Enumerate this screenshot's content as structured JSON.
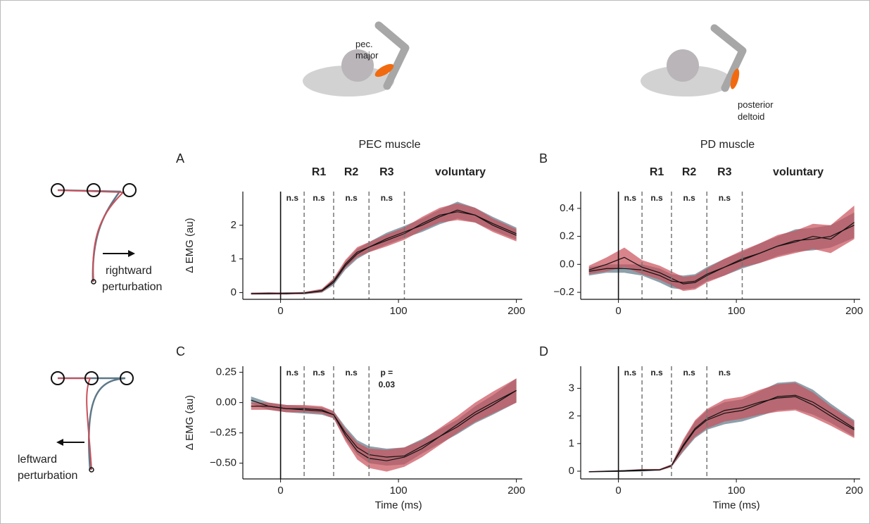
{
  "illustrations": {
    "pec_label": [
      "pec.",
      "major"
    ],
    "pd_label": [
      "posterior",
      "deltoid"
    ],
    "rightward": [
      "rightward",
      "perturbation"
    ],
    "leftward": [
      "leftward",
      "perturbation"
    ]
  },
  "chart_data": [
    {
      "type": "line",
      "panel": "A",
      "title": "PEC muscle",
      "ylabel": "Δ EMG (au)",
      "x": [
        -25,
        -10,
        5,
        20,
        35,
        45,
        55,
        65,
        75,
        90,
        105,
        120,
        135,
        150,
        165,
        180,
        200
      ],
      "xlim": [
        -32,
        205
      ],
      "xticks": [
        0,
        100,
        200
      ],
      "ylim": [
        -0.2,
        3.0
      ],
      "yticks": [
        0,
        1,
        2
      ],
      "onset": 0,
      "windows": [
        {
          "start": 0,
          "end": 20,
          "stat": [
            "n.s"
          ]
        },
        {
          "label": "R1",
          "start": 20,
          "end": 45,
          "stat": [
            "n.s"
          ]
        },
        {
          "label": "R2",
          "start": 45,
          "end": 75,
          "stat": [
            "n.s"
          ]
        },
        {
          "label": "R3",
          "start": 75,
          "end": 105,
          "stat": [
            "n.s"
          ]
        },
        {
          "label": "voluntary",
          "start": 105,
          "end": 200
        }
      ],
      "series": [
        {
          "color": "#5d7888",
          "values": [
            -0.03,
            -0.03,
            -0.02,
            -0.02,
            0.05,
            0.3,
            0.8,
            1.15,
            1.35,
            1.6,
            1.8,
            2.0,
            2.25,
            2.45,
            2.3,
            2.05,
            1.75
          ],
          "error": [
            0.03,
            0.03,
            0.03,
            0.03,
            0.05,
            0.08,
            0.12,
            0.15,
            0.15,
            0.18,
            0.18,
            0.2,
            0.22,
            0.25,
            0.22,
            0.2,
            0.18
          ]
        },
        {
          "color": "#c9505a",
          "values": [
            -0.03,
            -0.02,
            -0.03,
            -0.01,
            0.06,
            0.35,
            0.85,
            1.2,
            1.35,
            1.55,
            1.75,
            2.05,
            2.3,
            2.4,
            2.3,
            2.0,
            1.7
          ],
          "error": [
            0.03,
            0.03,
            0.03,
            0.03,
            0.05,
            0.08,
            0.12,
            0.15,
            0.15,
            0.18,
            0.18,
            0.2,
            0.22,
            0.25,
            0.22,
            0.2,
            0.18
          ]
        }
      ]
    },
    {
      "type": "line",
      "panel": "B",
      "title": "PD muscle",
      "x": [
        -25,
        -10,
        5,
        20,
        35,
        45,
        55,
        65,
        75,
        90,
        105,
        120,
        135,
        150,
        165,
        180,
        200
      ],
      "xlim": [
        -32,
        205
      ],
      "xticks": [
        0,
        100,
        200
      ],
      "ylim": [
        -0.25,
        0.52
      ],
      "yticks": [
        {
          "value": -0.2,
          "label": "−0.2"
        },
        {
          "value": 0,
          "label": "0.0"
        },
        0.2,
        0.4
      ],
      "onset": 0,
      "windows": [
        {
          "start": 0,
          "end": 20,
          "stat": [
            "n.s"
          ]
        },
        {
          "label": "R1",
          "start": 20,
          "end": 45,
          "stat": [
            "n.s"
          ]
        },
        {
          "label": "R2",
          "start": 45,
          "end": 75,
          "stat": [
            "n.s"
          ]
        },
        {
          "label": "R3",
          "start": 75,
          "end": 105,
          "stat": [
            "n.s"
          ]
        },
        {
          "label": "voluntary",
          "start": 105,
          "end": 200
        }
      ],
      "series": [
        {
          "color": "#5d7888",
          "values": [
            -0.05,
            -0.03,
            -0.03,
            -0.04,
            -0.08,
            -0.12,
            -0.13,
            -0.12,
            -0.07,
            -0.02,
            0.03,
            0.08,
            0.13,
            0.17,
            0.18,
            0.2,
            0.28
          ],
          "error": [
            0.03,
            0.03,
            0.03,
            0.04,
            0.05,
            0.05,
            0.05,
            0.05,
            0.05,
            0.06,
            0.06,
            0.07,
            0.07,
            0.08,
            0.08,
            0.08,
            0.09
          ]
        },
        {
          "color": "#c9505a",
          "values": [
            -0.04,
            0.0,
            0.05,
            -0.02,
            -0.06,
            -0.1,
            -0.14,
            -0.13,
            -0.08,
            -0.02,
            0.04,
            0.08,
            0.13,
            0.16,
            0.2,
            0.18,
            0.3
          ],
          "error": [
            0.03,
            0.05,
            0.07,
            0.05,
            0.05,
            0.05,
            0.05,
            0.05,
            0.05,
            0.06,
            0.06,
            0.07,
            0.08,
            0.08,
            0.09,
            0.1,
            0.12
          ]
        }
      ]
    },
    {
      "type": "line",
      "panel": "C",
      "ylabel": "Δ EMG (au)",
      "xlabel": "Time (ms)",
      "x": [
        -25,
        -10,
        5,
        20,
        35,
        45,
        55,
        65,
        75,
        90,
        105,
        120,
        135,
        150,
        165,
        180,
        200
      ],
      "xlim": [
        -32,
        205
      ],
      "xticks": [
        0,
        100,
        200
      ],
      "ylim": [
        -0.63,
        0.3
      ],
      "yticks": [
        {
          "value": -0.5,
          "label": "−0.50"
        },
        {
          "value": -0.25,
          "label": "−0.25"
        },
        {
          "value": 0,
          "label": "0.00"
        },
        0.25
      ],
      "onset": 0,
      "windows": [
        {
          "start": 0,
          "end": 20,
          "stat": [
            "n.s"
          ]
        },
        {
          "start": 20,
          "end": 45,
          "stat": [
            "n.s"
          ]
        },
        {
          "start": 45,
          "end": 75,
          "stat": [
            "n.s"
          ]
        },
        {
          "start": 75,
          "end": 105,
          "stat": [
            "p =",
            "0.03"
          ]
        }
      ],
      "series": [
        {
          "color": "#5d7888",
          "values": [
            0.02,
            -0.03,
            -0.05,
            -0.06,
            -0.07,
            -0.1,
            -0.25,
            -0.37,
            -0.43,
            -0.45,
            -0.44,
            -0.36,
            -0.28,
            -0.2,
            -0.1,
            -0.02,
            0.1
          ],
          "error": [
            0.03,
            0.03,
            0.03,
            0.03,
            0.03,
            0.03,
            0.05,
            0.06,
            0.07,
            0.07,
            0.07,
            0.06,
            0.06,
            0.06,
            0.07,
            0.08,
            0.1
          ]
        },
        {
          "color": "#c9505a",
          "values": [
            -0.03,
            -0.03,
            -0.05,
            -0.05,
            -0.06,
            -0.1,
            -0.27,
            -0.4,
            -0.46,
            -0.48,
            -0.45,
            -0.38,
            -0.28,
            -0.18,
            -0.08,
            0.0,
            0.1
          ],
          "error": [
            0.03,
            0.03,
            0.03,
            0.03,
            0.03,
            0.03,
            0.05,
            0.07,
            0.08,
            0.09,
            0.08,
            0.07,
            0.07,
            0.07,
            0.08,
            0.09,
            0.1
          ]
        }
      ]
    },
    {
      "type": "line",
      "panel": "D",
      "xlabel": "Time (ms)",
      "x": [
        -25,
        -10,
        5,
        20,
        35,
        45,
        55,
        65,
        75,
        90,
        105,
        120,
        135,
        150,
        165,
        180,
        200
      ],
      "xlim": [
        -32,
        205
      ],
      "xticks": [
        0,
        100,
        200
      ],
      "ylim": [
        -0.28,
        3.8
      ],
      "yticks": [
        0,
        1,
        2,
        3
      ],
      "onset": 0,
      "windows": [
        {
          "start": 0,
          "end": 20,
          "stat": [
            "n.s"
          ]
        },
        {
          "start": 20,
          "end": 45,
          "stat": [
            "n.s"
          ]
        },
        {
          "start": 45,
          "end": 75,
          "stat": [
            "n.s"
          ]
        },
        {
          "start": 75,
          "end": 105,
          "stat": [
            "n.s"
          ]
        }
      ],
      "series": [
        {
          "color": "#5d7888",
          "values": [
            -0.02,
            -0.01,
            0.0,
            0.02,
            0.05,
            0.2,
            0.9,
            1.5,
            1.85,
            2.1,
            2.2,
            2.45,
            2.7,
            2.75,
            2.5,
            2.1,
            1.55
          ],
          "error": [
            0.02,
            0.02,
            0.02,
            0.03,
            0.03,
            0.05,
            0.2,
            0.3,
            0.35,
            0.4,
            0.4,
            0.45,
            0.5,
            0.5,
            0.45,
            0.35,
            0.3
          ]
        },
        {
          "color": "#c9505a",
          "values": [
            -0.02,
            0.0,
            0.02,
            0.05,
            0.05,
            0.2,
            0.95,
            1.55,
            1.9,
            2.2,
            2.3,
            2.5,
            2.65,
            2.7,
            2.4,
            2.0,
            1.5
          ],
          "error": [
            0.02,
            0.02,
            0.02,
            0.03,
            0.03,
            0.05,
            0.2,
            0.3,
            0.35,
            0.4,
            0.4,
            0.45,
            0.5,
            0.5,
            0.45,
            0.35,
            0.3
          ]
        }
      ]
    }
  ]
}
